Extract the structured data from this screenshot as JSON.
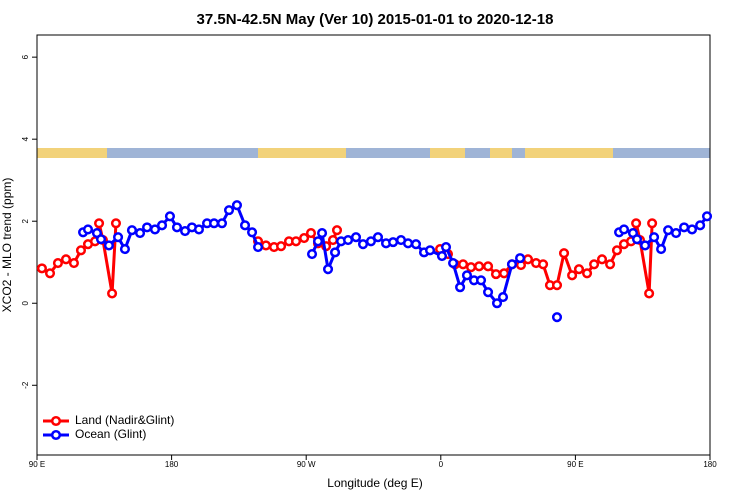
{
  "chart_data": {
    "type": "line",
    "title": "37.5N-42.5N May (Ver 10)   2015-01-01 to 2020-12-18",
    "x_label": "Longitude (deg E)",
    "y_label": "XCO2 - MLO trend (ppm)",
    "xlim": [
      -270,
      180
    ],
    "xticks": [
      {
        "value": -270,
        "label": "90 E"
      },
      {
        "value": -180,
        "label": "180"
      },
      {
        "value": -90,
        "label": "90 W"
      },
      0,
      {
        "value": 90,
        "label": "90 E"
      },
      {
        "value": 180,
        "label": "180"
      }
    ],
    "ylim": [
      -3.7,
      6.54
    ],
    "yticks": [
      -2,
      0,
      2,
      4,
      6
    ],
    "legend": "bottom-left",
    "series": [
      {
        "name": "Land (Nadir&Glint)",
        "color": "#ff0000",
        "x": [
          -266.7,
          -261.3,
          -256.0,
          -250.6,
          -245.3,
          -240.6,
          -235.9,
          -231.2,
          -228.5,
          -225.9,
          -219.8,
          -217.2,
          null,
          -122.2,
          -116.9,
          -111.5,
          -106.8,
          -101.5,
          -96.8,
          -91.4,
          -86.8,
          -82.1,
          -76.7,
          -72.1,
          -69.4,
          null,
          -0.5,
          4.8,
          9.5,
          14.9,
          20.2,
          25.6,
          31.6,
          36.9,
          42.3,
          47.6,
          53.6,
          58.3,
          63.7,
          68.4,
          73.0,
          77.7,
          82.4,
          87.8,
          92.4,
          97.8,
          102.5,
          107.8,
          113.2,
          117.8,
          122.5,
          127.2,
          130.6,
          133.2,
          139.3,
          141.3
        ],
        "values": [
          0.85,
          0.73,
          0.98,
          1.07,
          0.98,
          1.29,
          1.44,
          1.51,
          1.95,
          1.54,
          0.24,
          1.95,
          null,
          1.51,
          1.41,
          1.37,
          1.39,
          1.51,
          1.51,
          1.59,
          1.71,
          1.46,
          1.39,
          1.54,
          1.78,
          null,
          1.32,
          1.2,
          0.95,
          0.95,
          0.88,
          0.9,
          0.9,
          0.71,
          0.73,
          0.95,
          0.93,
          1.07,
          0.98,
          0.95,
          0.44,
          0.44,
          1.22,
          0.68,
          0.83,
          0.73,
          0.95,
          1.07,
          0.95,
          1.29,
          1.44,
          1.51,
          1.95,
          1.54,
          0.24,
          1.95
        ]
      },
      {
        "name": "Ocean (Glint)",
        "color": "#0000ff",
        "x": [
          -239.2,
          -235.9,
          -229.9,
          -227.2,
          -221.9,
          -215.8,
          -211.2,
          -206.5,
          -201.1,
          -196.4,
          -191.1,
          -186.4,
          -181.1,
          -176.4,
          -171.0,
          -166.4,
          -161.7,
          -156.3,
          -151.6,
          -146.3,
          -141.6,
          -136.3,
          -130.9,
          -126.2,
          -122.2,
          null,
          -86.1,
          -82.1,
          -79.4,
          -75.4,
          -70.7,
          -66.7,
          -62.0,
          -56.7,
          -52.0,
          -46.7,
          -42.0,
          -36.6,
          -31.9,
          -26.6,
          -21.9,
          -16.6,
          -11.2,
          -7.2,
          0.8,
          3.5,
          8.2,
          12.9,
          17.5,
          22.2,
          26.9,
          31.6,
          37.6,
          41.6,
          47.6,
          53.0,
          null,
          77.7,
          null,
          119.2,
          122.5,
          128.5,
          131.2,
          136.6,
          142.6,
          147.3,
          152.0,
          157.3,
          162.7,
          168.0,
          173.4,
          178.0
        ],
        "values": [
          1.73,
          1.8,
          1.71,
          1.56,
          1.41,
          1.61,
          1.32,
          1.78,
          1.71,
          1.85,
          1.8,
          1.9,
          2.12,
          1.85,
          1.76,
          1.85,
          1.8,
          1.95,
          1.95,
          1.95,
          2.27,
          2.39,
          1.9,
          1.73,
          1.37,
          null,
          1.2,
          1.51,
          1.71,
          0.83,
          1.24,
          1.51,
          1.54,
          1.61,
          1.44,
          1.51,
          1.61,
          1.46,
          1.49,
          1.54,
          1.46,
          1.44,
          1.24,
          1.29,
          1.15,
          1.37,
          0.98,
          0.39,
          0.68,
          0.56,
          0.56,
          0.27,
          0.0,
          0.15,
          0.95,
          1.1,
          null,
          -0.34,
          null,
          1.73,
          1.8,
          1.71,
          1.56,
          1.41,
          1.61,
          1.32,
          1.78,
          1.71,
          1.85,
          1.8,
          1.9,
          2.12
        ]
      }
    ]
  }
}
